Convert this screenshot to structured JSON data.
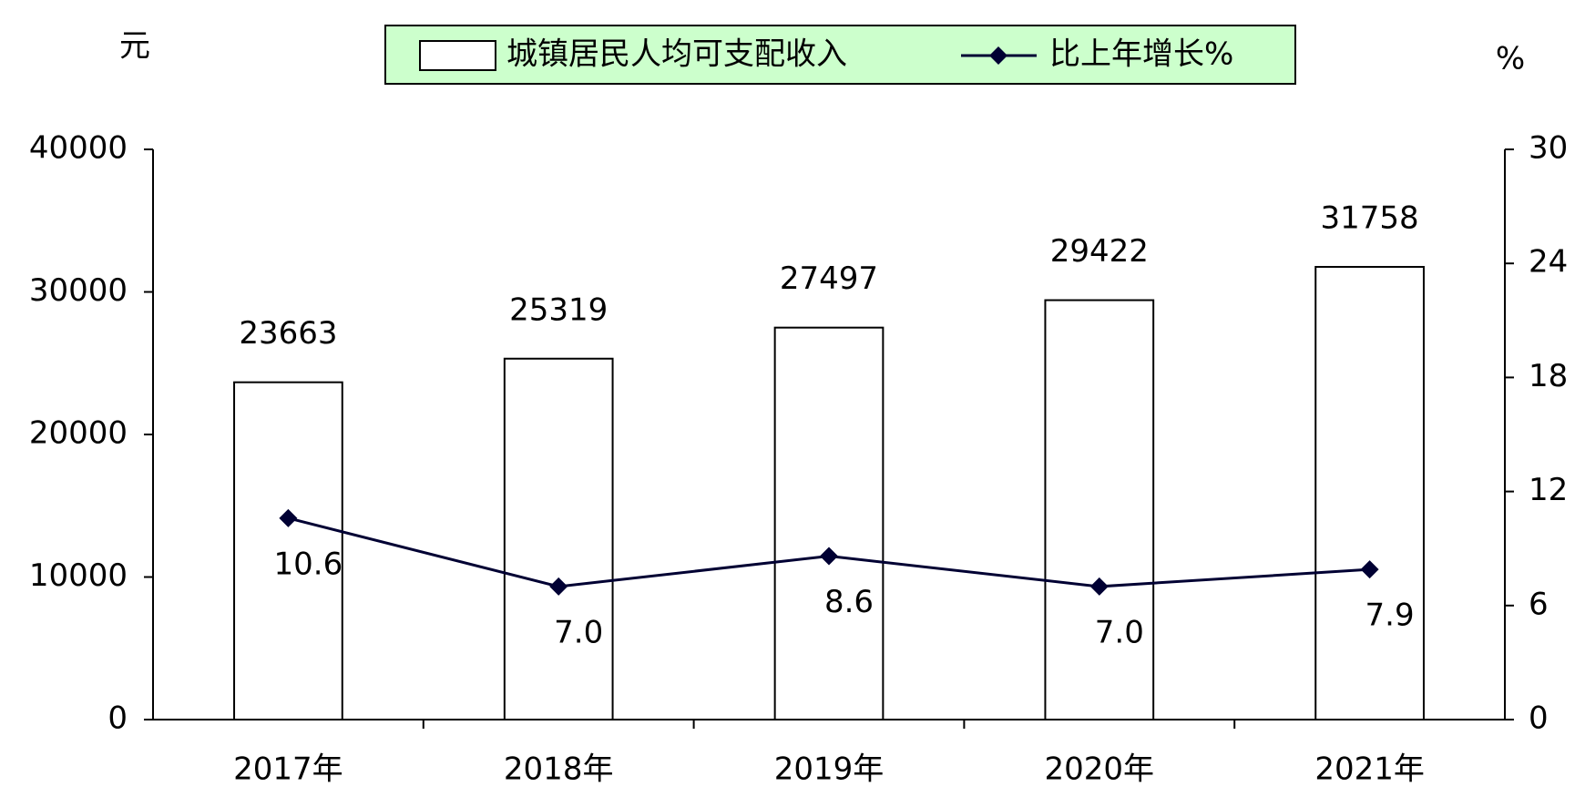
{
  "chart_data": {
    "type": "bar",
    "y_label": "元",
    "y2_label": "%",
    "categories": [
      "2017年",
      "2018年",
      "2019年",
      "2020年",
      "2021年"
    ],
    "series": [
      {
        "name": "城镇居民人均可支配收入",
        "type": "bar",
        "color": "#ffffff",
        "values": [
          23663,
          25319,
          27497,
          29422,
          31758
        ]
      },
      {
        "name": "比上年增长%",
        "type": "line",
        "axis": "y2",
        "color": "#000033",
        "values": [
          10.6,
          7,
          8.6,
          7,
          7.9
        ],
        "value_labels": [
          "10.6",
          "7.0",
          "8.6",
          "7.0",
          "7.9"
        ]
      }
    ],
    "ylim": [
      0,
      40000
    ],
    "yticks": [
      0,
      10000,
      20000,
      30000,
      40000
    ],
    "y2lim": [
      0,
      30
    ],
    "y2ticks": [
      0,
      6,
      12,
      18,
      24,
      30
    ],
    "legend": "top",
    "legend_color": "#ccffcc"
  }
}
